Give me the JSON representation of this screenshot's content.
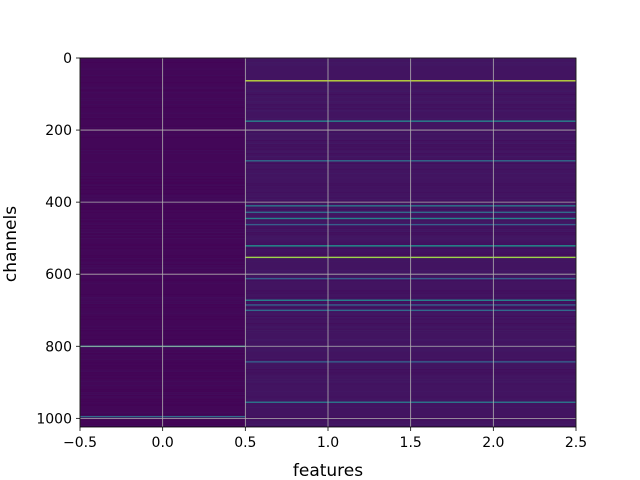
{
  "chart_data": {
    "type": "heatmap",
    "title": "",
    "xlabel": "features",
    "ylabel": "channels",
    "x_ticks": [
      "−0.5",
      "0.0",
      "0.5",
      "1.0",
      "1.5",
      "2.0",
      "2.5"
    ],
    "x_tick_values": [
      -0.5,
      0.0,
      0.5,
      1.0,
      1.5,
      2.0,
      2.5
    ],
    "y_ticks": [
      "0",
      "200",
      "400",
      "600",
      "800",
      "1000"
    ],
    "y_tick_values": [
      0,
      200,
      400,
      600,
      800,
      1000
    ],
    "xlim": [
      -0.5,
      2.5
    ],
    "ylim": [
      1024,
      0
    ],
    "y_axis_inverted": true,
    "grid": true,
    "colormap": "viridis",
    "columns": [
      {
        "x_range": [
          -0.5,
          0.5
        ],
        "base_value": 0.02
      },
      {
        "x_range": [
          0.5,
          2.5
        ],
        "base_value": 0.06
      }
    ],
    "highlighted_rows": [
      {
        "channel": 63,
        "column": 1,
        "value": 0.9
      },
      {
        "channel": 175,
        "column": 1,
        "value": 0.45
      },
      {
        "channel": 285,
        "column": 1,
        "value": 0.35
      },
      {
        "channel": 410,
        "column": 1,
        "value": 0.4
      },
      {
        "channel": 428,
        "column": 1,
        "value": 0.35
      },
      {
        "channel": 445,
        "column": 1,
        "value": 0.45
      },
      {
        "channel": 462,
        "column": 1,
        "value": 0.3
      },
      {
        "channel": 521,
        "column": 1,
        "value": 0.5
      },
      {
        "channel": 553,
        "column": 1,
        "value": 0.85
      },
      {
        "channel": 612,
        "column": 1,
        "value": 0.3
      },
      {
        "channel": 672,
        "column": 1,
        "value": 0.45
      },
      {
        "channel": 685,
        "column": 1,
        "value": 0.3
      },
      {
        "channel": 700,
        "column": 1,
        "value": 0.35
      },
      {
        "channel": 843,
        "column": 1,
        "value": 0.3
      },
      {
        "channel": 955,
        "column": 1,
        "value": 0.4
      },
      {
        "channel": 800,
        "column": 0,
        "value": 0.55
      },
      {
        "channel": 995,
        "column": 0,
        "value": 0.35
      }
    ]
  }
}
